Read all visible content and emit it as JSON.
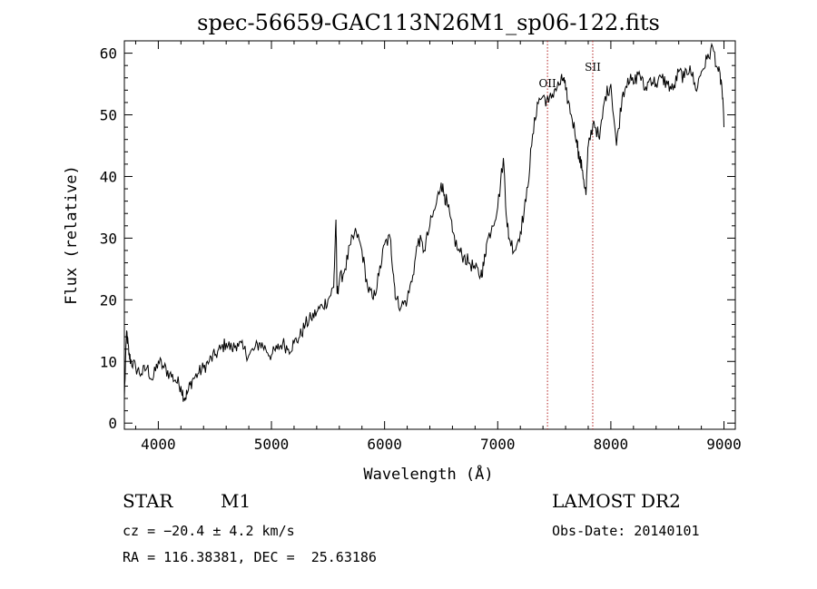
{
  "chart_data": {
    "type": "line",
    "title": "spec-56659-GAC113N26M1_sp06-122.fits",
    "xlabel": "Wavelength (Å)",
    "ylabel": "Flux (relative)",
    "xlim": [
      3700,
      9100
    ],
    "ylim": [
      -1,
      62
    ],
    "xticks": [
      4000,
      5000,
      6000,
      7000,
      8000,
      9000
    ],
    "yticks": [
      0,
      10,
      20,
      30,
      40,
      50,
      60
    ],
    "grid": false,
    "legend": "none",
    "line_color": "#000000",
    "marker_color": "#b22222",
    "series": [
      {
        "x": [
          3700,
          3720,
          3740,
          3760,
          3800,
          3850,
          3900,
          3950,
          4000,
          4050,
          4100,
          4150,
          4200,
          4230,
          4260,
          4300,
          4350,
          4400,
          4450,
          4500,
          4550,
          4600,
          4650,
          4700,
          4750,
          4800,
          4850,
          4900,
          4950,
          5000,
          5050,
          5100,
          5150,
          5200,
          5250,
          5300,
          5350,
          5400,
          5450,
          5500,
          5550,
          5570,
          5580,
          5600,
          5650,
          5700,
          5750,
          5800,
          5850,
          5900,
          5950,
          6000,
          6050,
          6080,
          6100,
          6150,
          6200,
          6250,
          6300,
          6350,
          6400,
          6450,
          6500,
          6530,
          6560,
          6600,
          6650,
          6700,
          6750,
          6800,
          6850,
          6880,
          6900,
          6950,
          7000,
          7050,
          7080,
          7100,
          7150,
          7200,
          7250,
          7300,
          7350,
          7400,
          7450,
          7500,
          7550,
          7580,
          7600,
          7650,
          7700,
          7720,
          7750,
          7780,
          7800,
          7850,
          7900,
          7950,
          8000,
          8050,
          8100,
          8150,
          8200,
          8250,
          8300,
          8350,
          8400,
          8450,
          8500,
          8550,
          8600,
          8650,
          8700,
          8750,
          8800,
          8850,
          8900,
          8950,
          8980,
          9000
        ],
        "y": [
          4,
          15,
          11,
          10,
          9,
          8,
          9,
          7,
          10,
          9,
          8,
          7,
          6,
          4,
          5,
          7,
          8,
          9,
          10,
          11,
          12,
          13,
          12,
          13,
          12,
          11,
          12,
          13,
          12,
          11,
          12,
          13,
          12,
          13,
          14,
          16,
          17,
          18,
          19,
          20,
          22,
          33,
          21,
          23,
          25,
          29,
          31,
          28,
          22,
          20,
          24,
          29,
          30,
          24,
          20,
          19,
          20,
          24,
          30,
          28,
          32,
          35,
          39,
          37,
          35,
          31,
          28,
          27,
          26,
          25,
          24,
          26,
          29,
          32,
          35,
          43,
          33,
          30,
          28,
          31,
          36,
          45,
          52,
          53,
          52,
          54,
          55,
          56,
          54,
          50,
          46,
          43,
          41,
          37,
          45,
          49,
          46,
          53,
          55,
          45,
          53,
          56,
          55,
          57,
          54,
          56,
          55,
          56,
          55,
          54,
          57,
          56,
          58,
          54,
          57,
          59,
          61,
          57,
          55,
          48
        ]
      }
    ],
    "annotations": [
      "OII",
      "SII"
    ],
    "markers": [
      {
        "label": "OII",
        "x": 7440
      },
      {
        "label": "SII",
        "x": 7840
      }
    ]
  },
  "info": {
    "object_class": "STAR",
    "subclass": "M1",
    "survey": "LAMOST DR2",
    "redshift": "cz = −20.4 ± 4.2 km/s",
    "obs_date": "Obs-Date: 20140101",
    "coords": "RA = 116.38381, DEC =  25.63186"
  }
}
